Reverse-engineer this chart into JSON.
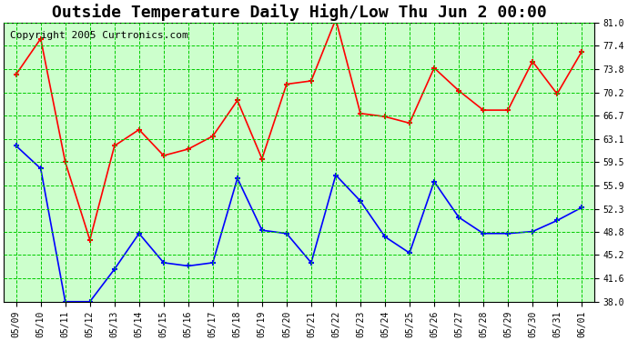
{
  "title": "Outside Temperature Daily High/Low Thu Jun 2 00:00",
  "copyright": "Copyright 2005 Curtronics.com",
  "x_labels": [
    "05/09",
    "05/10",
    "05/11",
    "05/12",
    "05/13",
    "05/14",
    "05/15",
    "05/16",
    "05/17",
    "05/18",
    "05/19",
    "05/20",
    "05/21",
    "05/22",
    "05/23",
    "05/24",
    "05/25",
    "05/26",
    "05/27",
    "05/28",
    "05/29",
    "05/30",
    "05/31",
    "06/01"
  ],
  "high_temps": [
    73.0,
    78.5,
    59.5,
    47.5,
    62.0,
    64.5,
    60.5,
    61.5,
    63.5,
    69.0,
    60.0,
    71.5,
    72.0,
    81.5,
    67.0,
    66.5,
    65.5,
    74.0,
    70.5,
    67.5,
    67.5,
    75.0,
    70.0,
    76.5
  ],
  "low_temps": [
    62.0,
    58.5,
    38.0,
    38.0,
    43.0,
    48.5,
    44.0,
    43.5,
    44.0,
    57.0,
    49.0,
    48.5,
    44.0,
    57.5,
    53.5,
    48.0,
    45.5,
    56.5,
    51.0,
    48.5,
    48.5,
    48.8,
    50.5,
    52.5
  ],
  "high_color": "#ff0000",
  "low_color": "#0000ff",
  "grid_color": "#00cc00",
  "bg_color": "#ccffcc",
  "title_fontsize": 13,
  "copyright_fontsize": 8,
  "ylim": [
    38.0,
    81.0
  ],
  "yticks": [
    38.0,
    41.6,
    45.2,
    48.8,
    52.3,
    55.9,
    59.5,
    63.1,
    66.7,
    70.2,
    73.8,
    77.4,
    81.0
  ]
}
